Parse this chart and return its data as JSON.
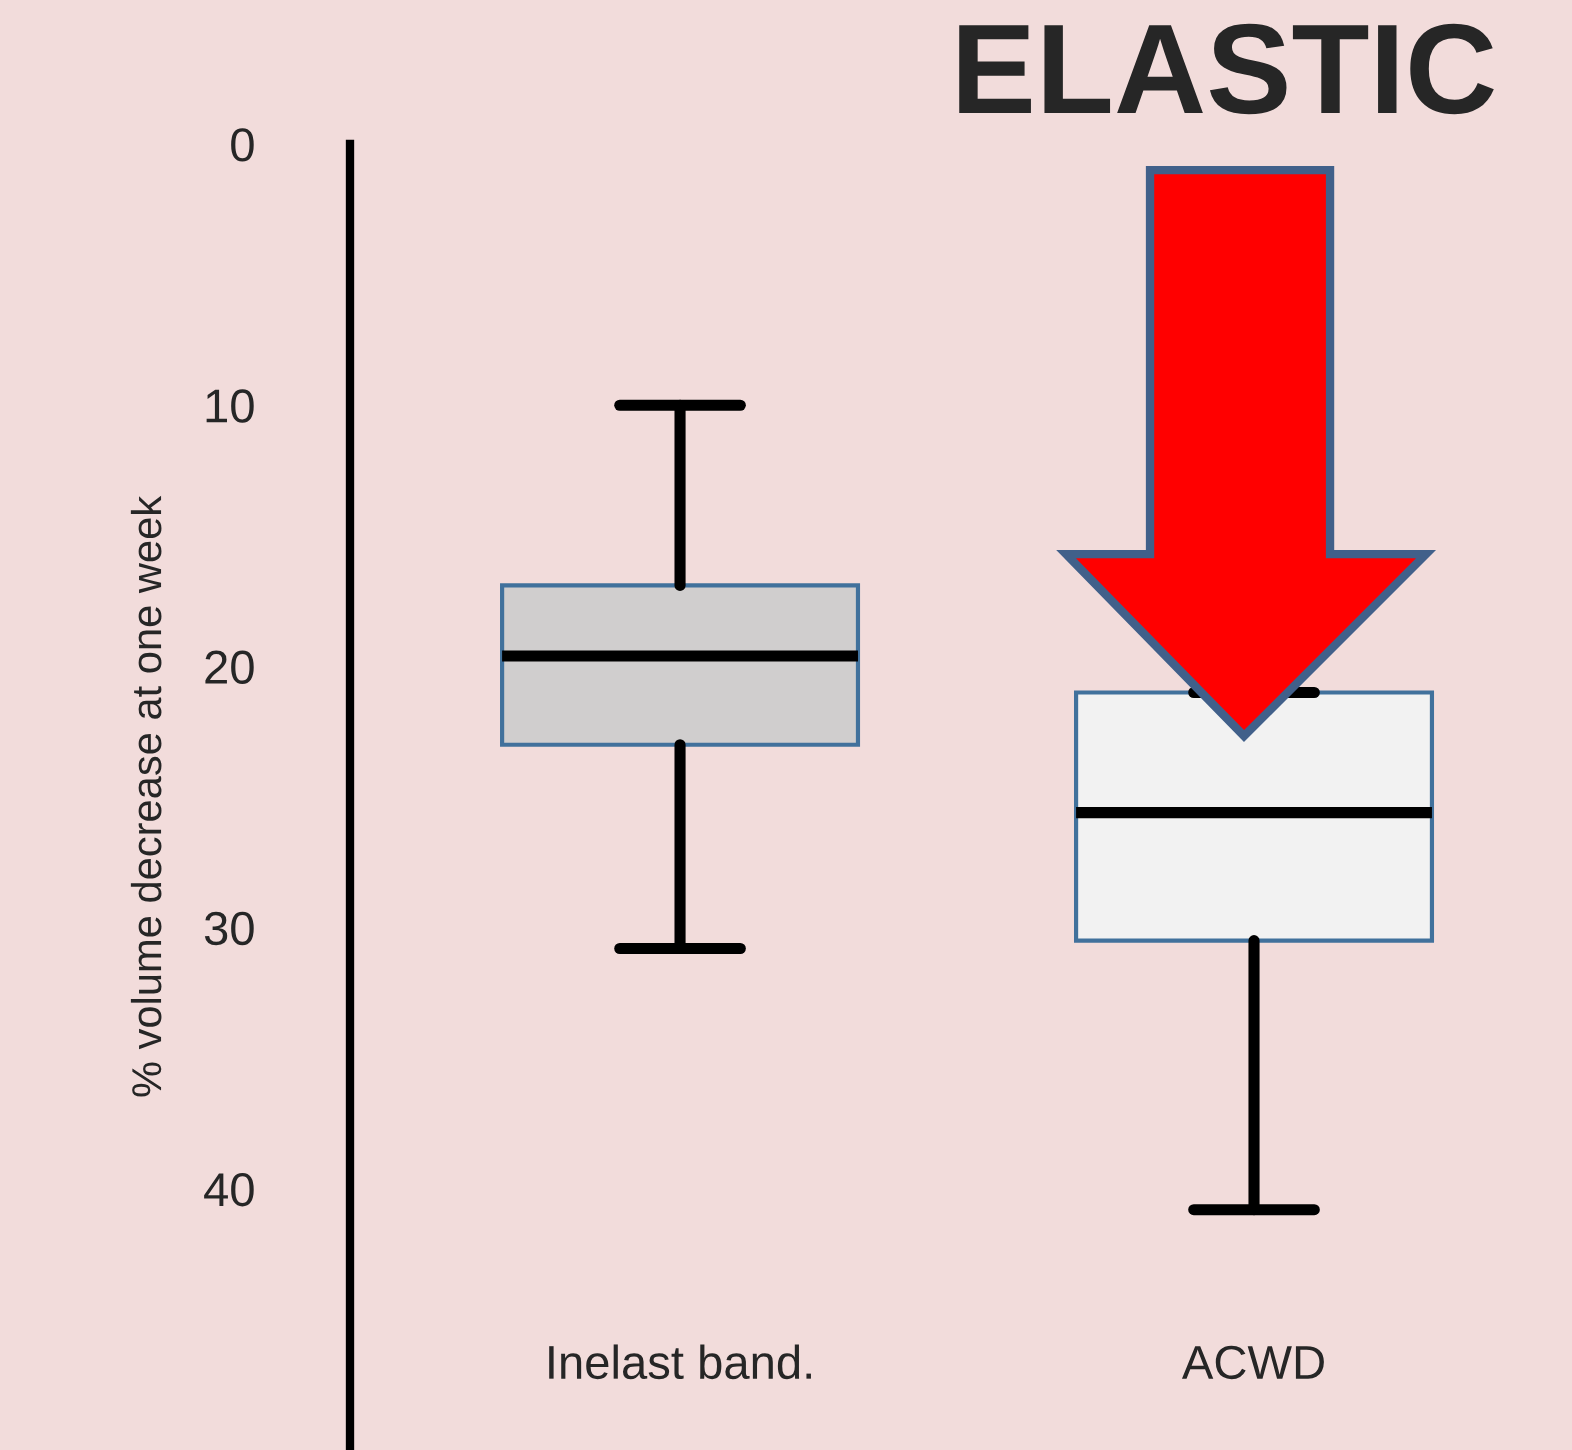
{
  "chart_data": {
    "type": "box",
    "categories": [
      "Inelast band.",
      "ACWD"
    ],
    "boxes": [
      {
        "low": 10.0,
        "q1": 16.9,
        "median": 19.6,
        "q3": 23.0,
        "high": 30.8
      },
      {
        "low": 21.0,
        "q1": 21.0,
        "median": 25.6,
        "q3": 30.5,
        "high": 40.8
      }
    ],
    "colors": [
      "#d0cece",
      "#f2f2f2"
    ],
    "ylabel": "% volume decrease at one week",
    "ylim": [
      50,
      0
    ],
    "yticks": [
      0,
      10,
      20,
      30,
      40
    ],
    "annotations": [
      "ELASTIC"
    ],
    "grid": false
  }
}
